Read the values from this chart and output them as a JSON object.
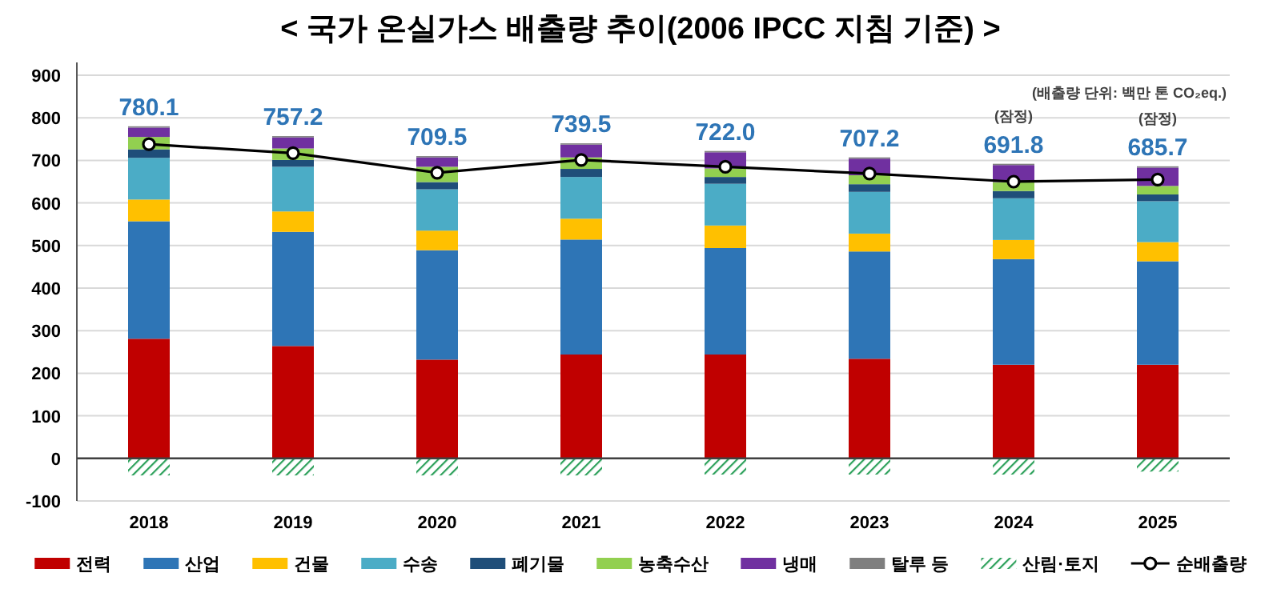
{
  "chart_data": {
    "type": "bar",
    "stacked": true,
    "title": "< 국가 온실가스 배출량 추이(2006 IPCC 지침 기준) >",
    "categories": [
      "2018",
      "2019",
      "2020",
      "2021",
      "2022",
      "2023",
      "2024",
      "2025"
    ],
    "series": [
      {
        "name": "전력",
        "color": "#c00000",
        "values": [
          281,
          264,
          232,
          244,
          244,
          234,
          220,
          220
        ]
      },
      {
        "name": "산업",
        "color": "#2e75b6",
        "values": [
          276,
          268,
          257,
          270,
          250,
          252,
          248,
          243
        ]
      },
      {
        "name": "건물",
        "color": "#ffc000",
        "values": [
          51,
          48,
          46,
          49,
          53,
          42,
          45,
          45
        ]
      },
      {
        "name": "수송",
        "color": "#4bacc6",
        "values": [
          98,
          105,
          97,
          98,
          98,
          98,
          98,
          96
        ]
      },
      {
        "name": "폐기물",
        "color": "#1f4e79",
        "values": [
          20,
          16,
          17,
          19,
          16,
          18,
          17,
          16
        ]
      },
      {
        "name": "농축수산",
        "color": "#92d050",
        "values": [
          29,
          27,
          36,
          27,
          20,
          21,
          21,
          20
        ]
      },
      {
        "name": "냉매",
        "color": "#7030a0",
        "values": [
          22,
          26,
          22,
          30,
          38,
          39,
          40,
          43
        ]
      },
      {
        "name": "탈루 등",
        "color": "#7f7f7f",
        "values": [
          3,
          3,
          3,
          3,
          3,
          3,
          3,
          3
        ]
      },
      {
        "name": "산림·토지",
        "color": "#2ca05a",
        "values": [
          -40,
          -40,
          -40,
          -40,
          -38,
          -38,
          -38,
          -31
        ]
      },
      {
        "name": "순배출량",
        "type": "line",
        "color": "#000000",
        "marker": "circle",
        "values": [
          738,
          717,
          671,
          701,
          685,
          669,
          650,
          655
        ]
      }
    ],
    "ylim": [
      -100,
      900
    ],
    "yticks": [
      -100,
      0,
      100,
      200,
      300,
      400,
      500,
      600,
      700,
      800,
      900
    ],
    "grid": "y",
    "legend": "bottom",
    "annotations": [
      "(배출량 단위: 백만 톤 CO₂eq.)",
      {
        "text": "780.1",
        "x": "2018",
        "y": 780.1
      },
      {
        "text": "757.2",
        "x": "2019",
        "y": 757.2
      },
      {
        "text": "709.5",
        "x": "2020",
        "y": 709.5
      },
      {
        "text": "739.5",
        "x": "2021",
        "y": 739.5
      },
      {
        "text": "722.0",
        "x": "2022",
        "y": 722.0
      },
      {
        "text": "707.2",
        "x": "2023",
        "y": 707.2
      },
      {
        "text": "691.8",
        "x": "2024",
        "y": 691.8
      },
      {
        "text": "685.7",
        "x": "2025",
        "y": 685.7
      },
      {
        "text": "(잠정)",
        "x": "2024",
        "y": 691.8
      },
      {
        "text": "(잠정)",
        "x": "2025",
        "y": 685.7
      }
    ]
  }
}
